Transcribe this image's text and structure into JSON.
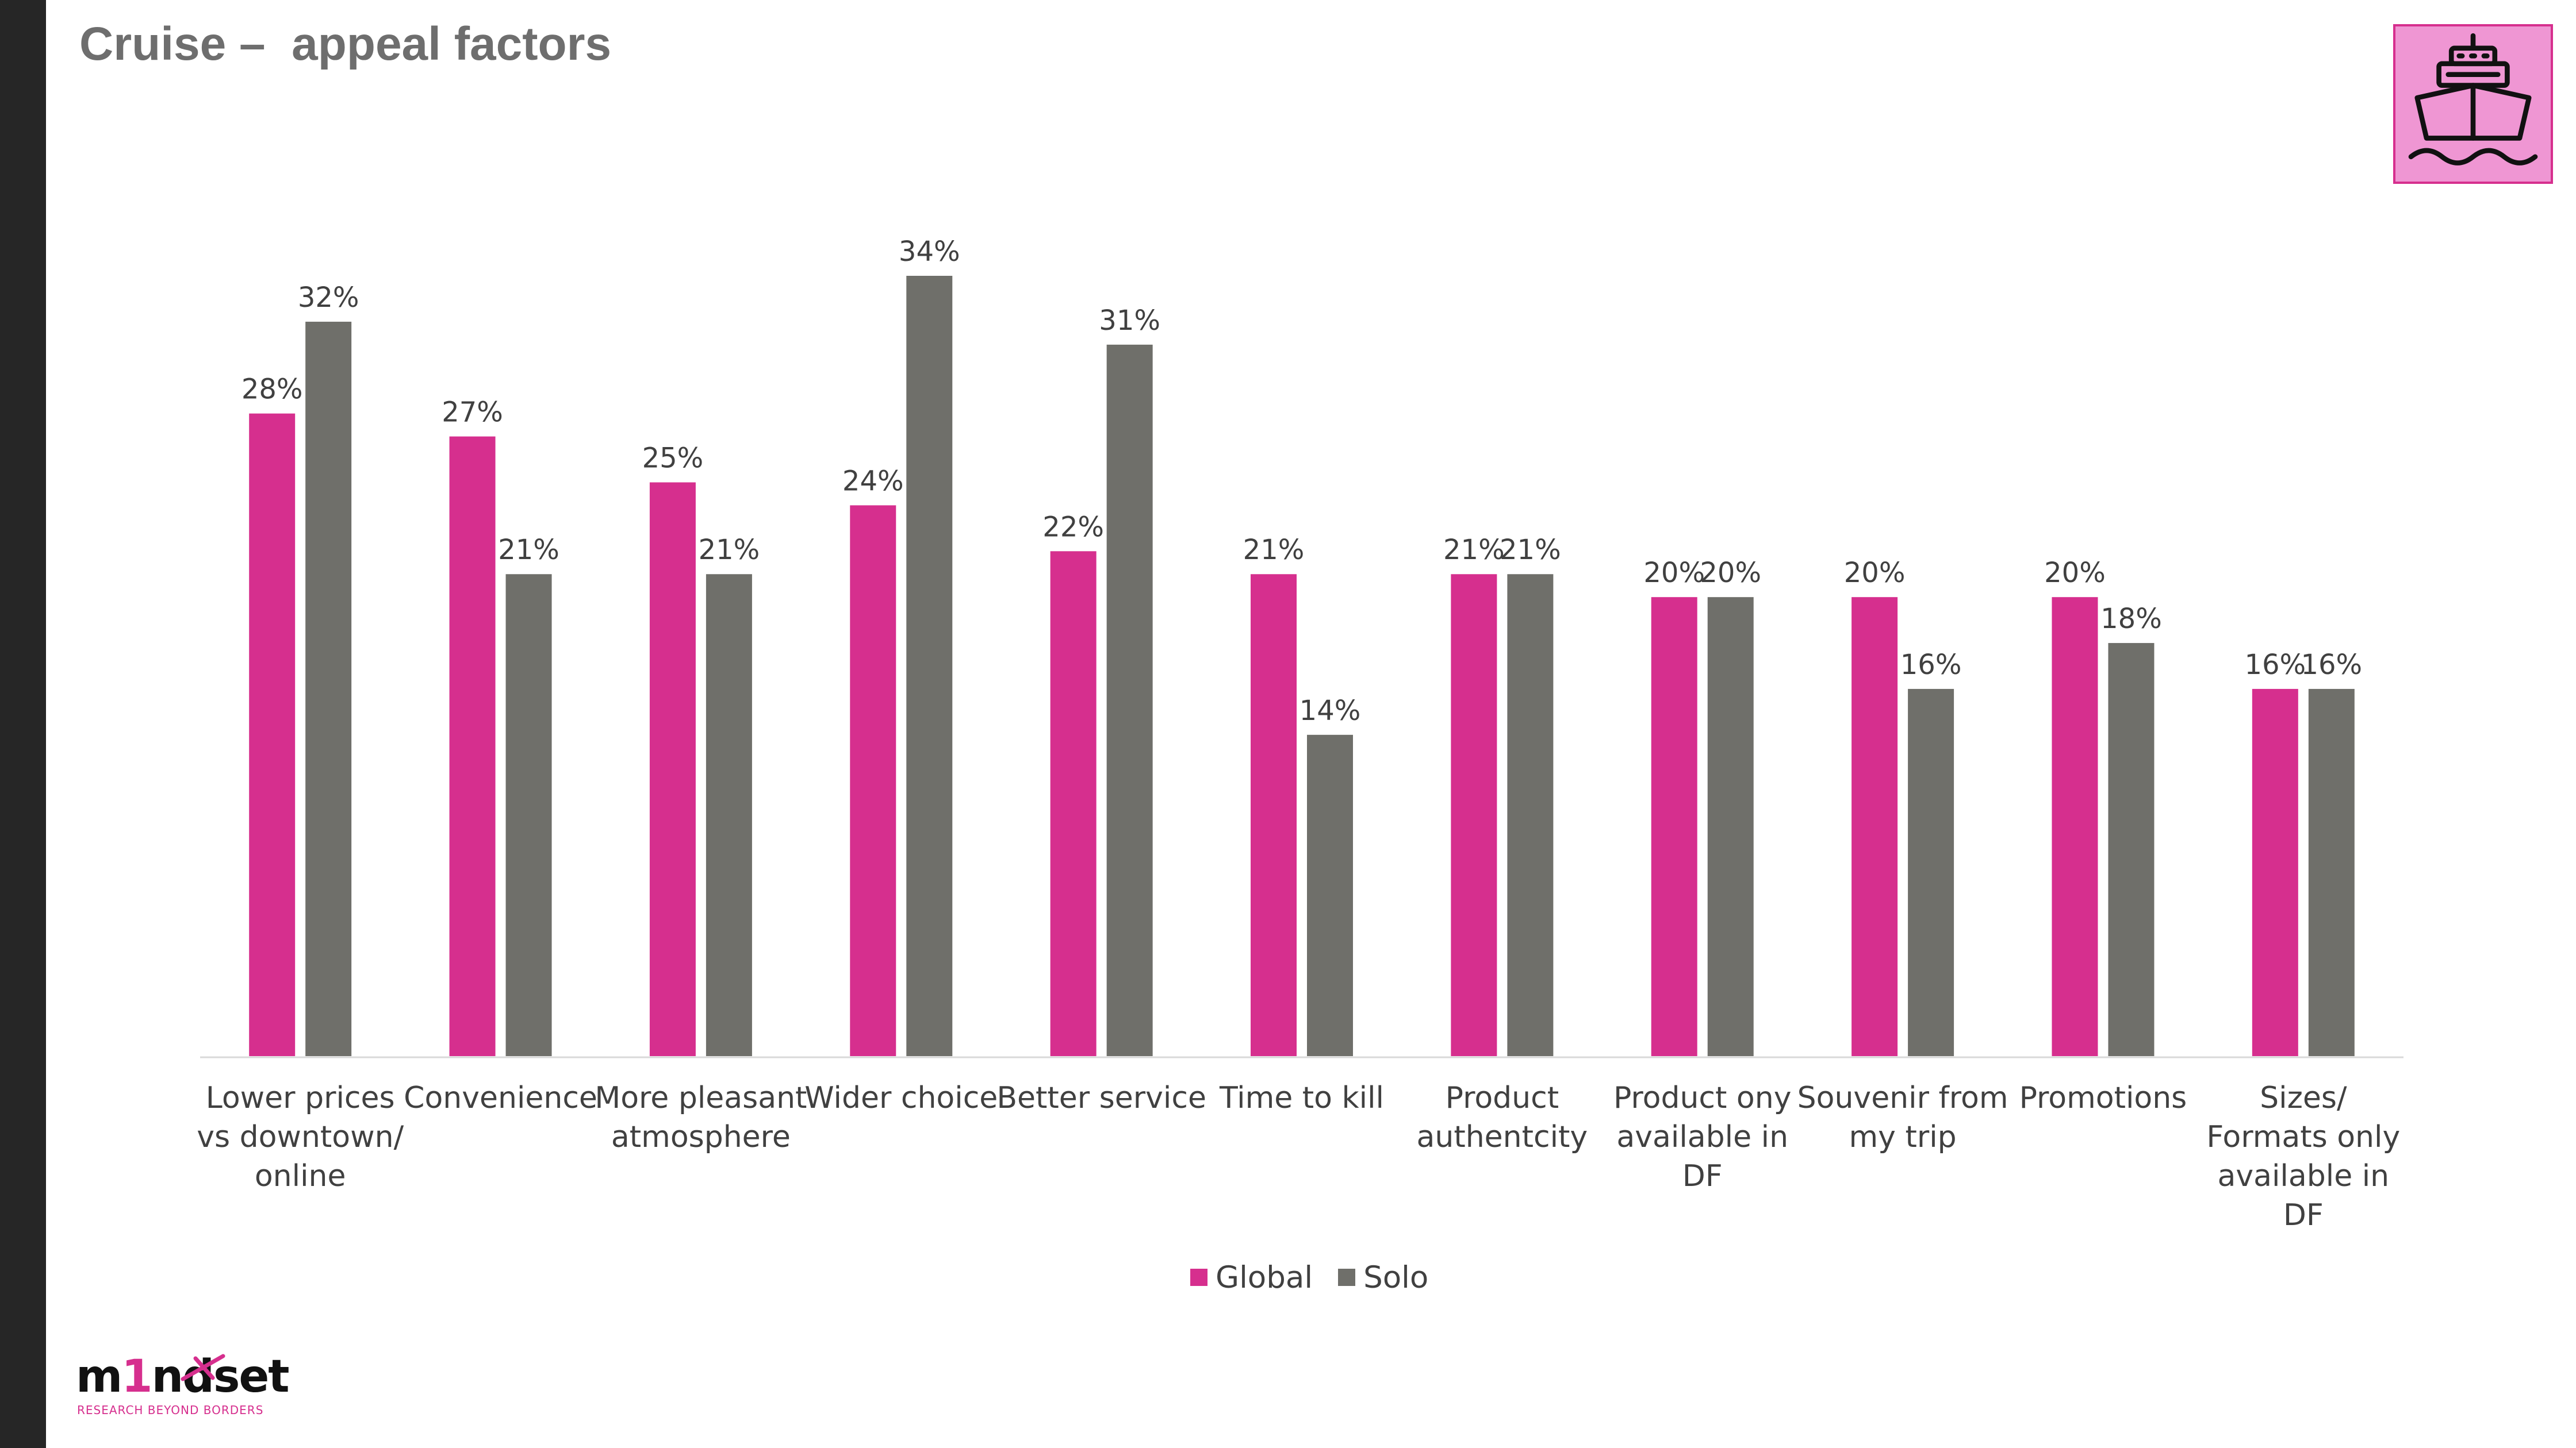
{
  "slide": {
    "title": "Cruise –  appeal factors"
  },
  "badge": {
    "icon": "cruise-ship-icon"
  },
  "logo": {
    "word_parts": [
      "m",
      "1",
      "nd",
      "set"
    ],
    "tagline": "RESEARCH BEYOND BORDERS"
  },
  "colors": {
    "global": "#d62f8e",
    "solo": "#6f6f6a",
    "axis_text": "#404040",
    "axis_line": "#d9d9d9"
  },
  "chart_data": {
    "type": "bar",
    "title": "",
    "xlabel": "",
    "ylabel": "",
    "ylim": [
      0,
      34
    ],
    "grid": false,
    "legend_position": "bottom",
    "categories": [
      [
        "Lower prices",
        "vs downtown/",
        "online"
      ],
      [
        "Convenience"
      ],
      [
        "More pleasant",
        "atmosphere"
      ],
      [
        "Wider choice"
      ],
      [
        "Better service"
      ],
      [
        "Time to kill"
      ],
      [
        "Product",
        "authentcity"
      ],
      [
        "Product ony",
        "available in",
        "DF"
      ],
      [
        "Souvenir from",
        "my trip"
      ],
      [
        "Promotions"
      ],
      [
        "Sizes/",
        "Formats only",
        "available in",
        "DF"
      ]
    ],
    "series": [
      {
        "name": "Global",
        "values": [
          28,
          27,
          25,
          24,
          22,
          21,
          21,
          20,
          20,
          20,
          16
        ],
        "labels": [
          "28%",
          "27%",
          "25%",
          "24%",
          "22%",
          "21%",
          "21%",
          "20%",
          "20%",
          "20%",
          "16%"
        ]
      },
      {
        "name": "Solo",
        "values": [
          32,
          21,
          21,
          34,
          31,
          14,
          21,
          20,
          16,
          18,
          16
        ],
        "labels": [
          "32%",
          "21%",
          "21%",
          "34%",
          "31%",
          "14%",
          "21%",
          "20%",
          "16%",
          "18%",
          "16%"
        ]
      }
    ]
  }
}
